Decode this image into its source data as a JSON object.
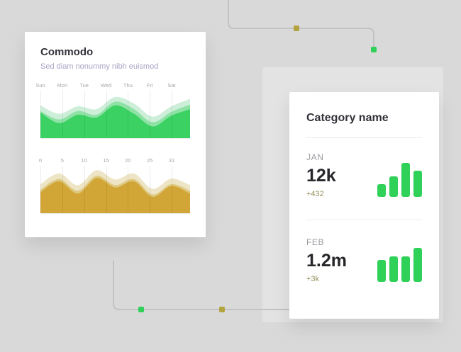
{
  "colors": {
    "background": "#d9d9d9",
    "panel": "#e3e3e3",
    "card": "#ffffff",
    "connector": "#c3c3c3",
    "green": "#2fd159",
    "olive": "#b3a33e",
    "title_text": "#33323a",
    "subtitle_text": "#a9a5c6",
    "muted_text": "#9b9ba1",
    "value_text": "#26262b",
    "delta_text": "#97915c",
    "axis_text": "#a6a6a6",
    "divider": "#ececec",
    "grid": "rgba(0,0,0,0.08)"
  },
  "left_card": {
    "title": "Commodo",
    "subtitle": "Sed diam nonummy nibh euismod"
  },
  "right_card": {
    "title": "Category name",
    "months": [
      {
        "label": "JAN",
        "value": "12k",
        "delta": "+432"
      },
      {
        "label": "FEB",
        "value": "1.2m",
        "delta": "+3k"
      }
    ]
  },
  "chart_data": [
    {
      "id": "weekly-wave",
      "type": "area",
      "categories": [
        "Sun",
        "Mon",
        "Tue",
        "Wed",
        "Thu",
        "Fri",
        "Sat"
      ],
      "ylim": [
        0,
        100
      ],
      "grid": "vertical",
      "series": [
        {
          "name": "back",
          "color": "#cdeed8",
          "values": [
            70,
            52,
            68,
            62,
            88,
            74,
            46,
            68,
            84
          ]
        },
        {
          "name": "mid",
          "color": "#8fe2a6",
          "values": [
            58,
            40,
            58,
            50,
            78,
            62,
            34,
            56,
            72
          ]
        },
        {
          "name": "front",
          "color": "#3bd163",
          "values": [
            55,
            32,
            50,
            44,
            70,
            52,
            25,
            48,
            62
          ]
        }
      ]
    },
    {
      "id": "monthly-wave",
      "type": "area",
      "categories": [
        "0",
        "5",
        "10",
        "15",
        "20",
        "25",
        "31"
      ],
      "ylim": [
        0,
        100
      ],
      "grid": "vertical",
      "series": [
        {
          "name": "back",
          "color": "#eee5c6",
          "values": [
            62,
            85,
            60,
            92,
            72,
            85,
            52,
            74,
            60
          ]
        },
        {
          "name": "mid",
          "color": "#ddc87e",
          "values": [
            50,
            73,
            48,
            80,
            60,
            73,
            40,
            62,
            48
          ]
        },
        {
          "name": "front",
          "color": "#d2a636",
          "values": [
            45,
            68,
            42,
            75,
            55,
            68,
            35,
            58,
            42
          ]
        }
      ]
    },
    {
      "id": "jan-bars",
      "type": "bar",
      "color": "#2fd159",
      "values": [
        37,
        61,
        100,
        78
      ]
    },
    {
      "id": "feb-bars",
      "type": "bar",
      "color": "#2fd159",
      "values": [
        64,
        76,
        76,
        100
      ]
    }
  ]
}
